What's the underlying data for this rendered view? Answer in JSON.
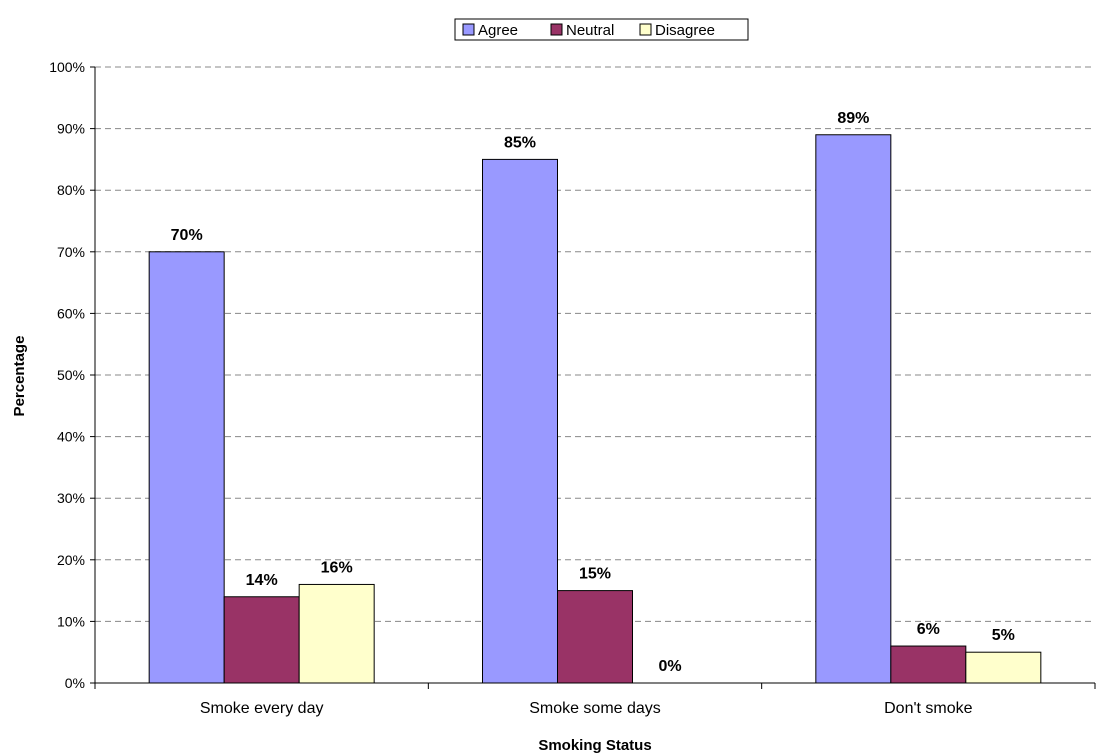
{
  "chart_data": {
    "type": "bar",
    "title": "",
    "xlabel": "Smoking Status",
    "ylabel": "Percentage",
    "categories": [
      "Smoke every day",
      "Smoke some days",
      "Don't smoke"
    ],
    "series": [
      {
        "name": "Agree",
        "color": "#9999ff",
        "values": [
          70,
          85,
          89
        ],
        "labels": [
          "70%",
          "85%",
          "89%"
        ]
      },
      {
        "name": "Neutral",
        "color": "#993366",
        "values": [
          14,
          15,
          6
        ],
        "labels": [
          "14%",
          "15%",
          "6%"
        ]
      },
      {
        "name": "Disagree",
        "color": "#ffffcc",
        "values": [
          16,
          0,
          5
        ],
        "labels": [
          "16%",
          "0%",
          "5%"
        ]
      }
    ],
    "ylim": [
      0,
      100
    ],
    "yticks": [
      0,
      10,
      20,
      30,
      40,
      50,
      60,
      70,
      80,
      90,
      100
    ],
    "ytick_labels": [
      "0%",
      "10%",
      "20%",
      "30%",
      "40%",
      "50%",
      "60%",
      "70%",
      "80%",
      "90%",
      "100%"
    ],
    "grid": true,
    "legend_position": "top-center"
  }
}
